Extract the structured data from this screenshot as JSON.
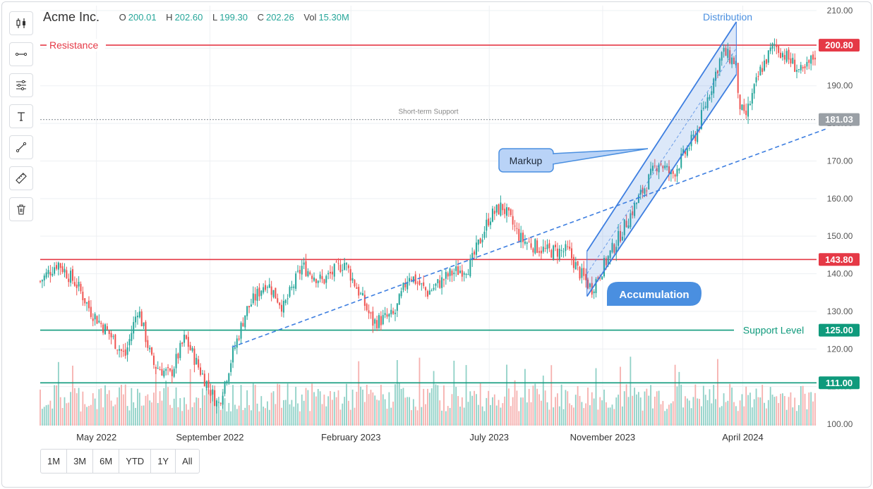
{
  "header": {
    "symbol": "Acme Inc.",
    "open_label": "O",
    "open": "200.01",
    "high_label": "H",
    "high": "202.60",
    "low_label": "L",
    "low": "199.30",
    "close_label": "C",
    "close": "202.26",
    "vol_label": "Vol",
    "volume": "15.30M"
  },
  "toolbar": {
    "tools": [
      {
        "name": "candlestick-icon"
      },
      {
        "name": "horizontal-line-icon"
      },
      {
        "name": "settings-sliders-icon"
      },
      {
        "name": "text-icon"
      },
      {
        "name": "trend-line-icon"
      },
      {
        "name": "ruler-icon"
      },
      {
        "name": "trash-icon"
      }
    ]
  },
  "range_buttons": [
    "1M",
    "3M",
    "6M",
    "YTD",
    "1Y",
    "All"
  ],
  "colors": {
    "up": "#26a69a",
    "down": "#ef5350",
    "resistance": "#e53946",
    "support": "#0f9a7c",
    "trend": "#3d7ee0",
    "neutral": "#9aa0a6"
  },
  "chart_data": {
    "type": "candlestick",
    "y_axis": {
      "ylim": [
        100,
        210
      ],
      "ticks": [
        "100.00",
        "110.00",
        "120.00",
        "130.00",
        "140.00",
        "150.00",
        "160.00",
        "170.00",
        "180.00",
        "190.00",
        "200.00",
        "210.00"
      ]
    },
    "x_axis": {
      "range": [
        "2022-03",
        "2024-06"
      ],
      "labels": [
        {
          "date": "2022-05-01",
          "text": "May 2022"
        },
        {
          "date": "2022-09-01",
          "text": "September 2022"
        },
        {
          "date": "2023-02-01",
          "text": "February 2023"
        },
        {
          "date": "2023-07-01",
          "text": "July 2023"
        },
        {
          "date": "2023-11-01",
          "text": "November 2023"
        },
        {
          "date": "2024-04-01",
          "text": "April 2024"
        }
      ]
    },
    "price_path": [
      {
        "date": "2022-03-01",
        "price": 138
      },
      {
        "date": "2022-03-20",
        "price": 143
      },
      {
        "date": "2022-04-10",
        "price": 137
      },
      {
        "date": "2022-04-25",
        "price": 130
      },
      {
        "date": "2022-05-15",
        "price": 124
      },
      {
        "date": "2022-06-01",
        "price": 118
      },
      {
        "date": "2022-06-15",
        "price": 131
      },
      {
        "date": "2022-07-01",
        "price": 116
      },
      {
        "date": "2022-07-20",
        "price": 113
      },
      {
        "date": "2022-08-05",
        "price": 123
      },
      {
        "date": "2022-08-20",
        "price": 115
      },
      {
        "date": "2022-09-10",
        "price": 105
      },
      {
        "date": "2022-09-25",
        "price": 118
      },
      {
        "date": "2022-10-10",
        "price": 130
      },
      {
        "date": "2022-11-01",
        "price": 138
      },
      {
        "date": "2022-11-20",
        "price": 131
      },
      {
        "date": "2022-12-10",
        "price": 142
      },
      {
        "date": "2023-01-01",
        "price": 138
      },
      {
        "date": "2023-01-25",
        "price": 143
      },
      {
        "date": "2023-02-10",
        "price": 135
      },
      {
        "date": "2023-02-25",
        "price": 127
      },
      {
        "date": "2023-03-20",
        "price": 129
      },
      {
        "date": "2023-04-05",
        "price": 140
      },
      {
        "date": "2023-04-25",
        "price": 135
      },
      {
        "date": "2023-05-20",
        "price": 140
      },
      {
        "date": "2023-06-10",
        "price": 142
      },
      {
        "date": "2023-07-01",
        "price": 155
      },
      {
        "date": "2023-07-15",
        "price": 158
      },
      {
        "date": "2023-08-05",
        "price": 149
      },
      {
        "date": "2023-09-01",
        "price": 146
      },
      {
        "date": "2023-09-25",
        "price": 146
      },
      {
        "date": "2023-10-05",
        "price": 141
      },
      {
        "date": "2023-10-20",
        "price": 136
      },
      {
        "date": "2023-11-15",
        "price": 148
      },
      {
        "date": "2023-12-10",
        "price": 160
      },
      {
        "date": "2024-01-01",
        "price": 170
      },
      {
        "date": "2024-01-15",
        "price": 166
      },
      {
        "date": "2024-02-10",
        "price": 177
      },
      {
        "date": "2024-03-10",
        "price": 199
      },
      {
        "date": "2024-03-25",
        "price": 196
      },
      {
        "date": "2024-03-26",
        "price": 187
      },
      {
        "date": "2024-04-03",
        "price": 181
      },
      {
        "date": "2024-04-20",
        "price": 194
      },
      {
        "date": "2024-05-05",
        "price": 201
      },
      {
        "date": "2024-05-25",
        "price": 196
      },
      {
        "date": "2024-06-05",
        "price": 193
      },
      {
        "date": "2024-06-20",
        "price": 199
      }
    ],
    "volume_note": "volume histogram drawn in lower band, colored by candle direction"
  },
  "annotations": {
    "resistance_label": "Resistance",
    "resistance_price": 200.8,
    "resistance_tag": "200.80",
    "short_term_support_label": "Short-term Support",
    "short_term_support_price": 181.03,
    "short_term_support_tag": "181.03",
    "horizontal_price": 143.8,
    "horizontal_tag": "143.80",
    "support_level_label": "Support Level",
    "support_level_price": 125,
    "support_level_tag": "125.00",
    "low_line_price": 111,
    "low_line_tag": "111.00",
    "distribution_label": "Distribution",
    "markup_label": "Markup",
    "accumulation_label": "Accumulation",
    "trendline": {
      "start": {
        "date": "2022-09-25",
        "price": 120.5
      },
      "end": {
        "date": "2024-06-30",
        "price": 178.5
      }
    },
    "channel": {
      "upper": {
        "start": {
          "date": "2023-10-15",
          "price": 146
        },
        "end": {
          "date": "2024-03-25",
          "price": 207
        }
      },
      "lower": {
        "start": {
          "date": "2023-10-15",
          "price": 134
        },
        "end": {
          "date": "2024-03-25",
          "price": 193
        }
      },
      "mid": {
        "start": {
          "date": "2023-10-15",
          "price": 140
        },
        "end": {
          "date": "2024-03-25",
          "price": 200
        }
      }
    }
  }
}
